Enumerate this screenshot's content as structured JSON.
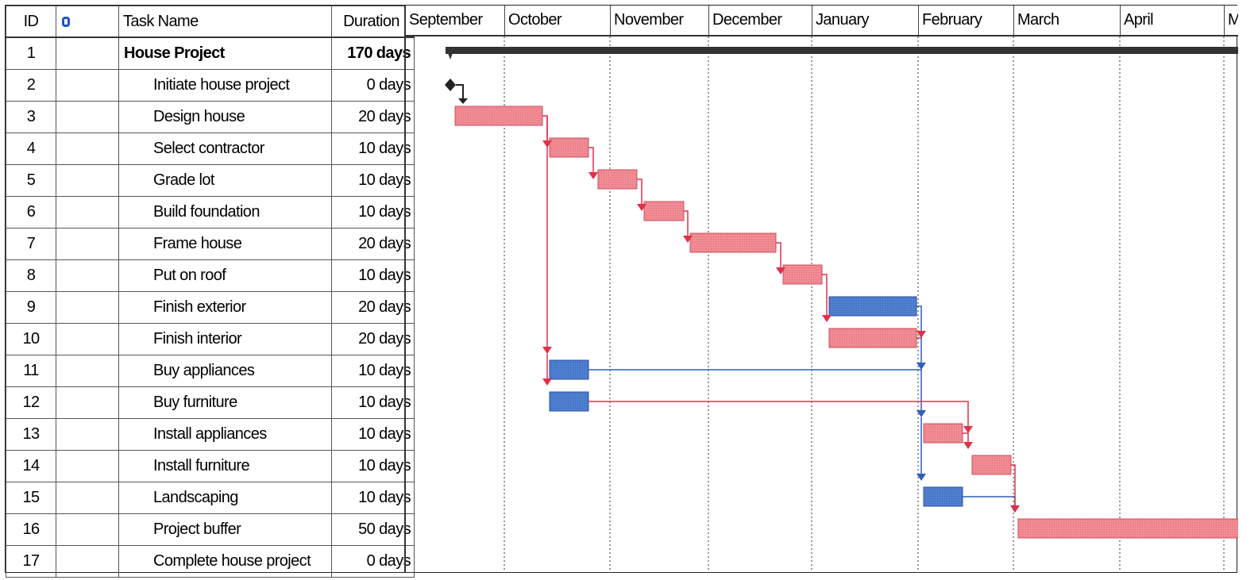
{
  "columns": {
    "id": "ID",
    "task_name": "Task Name",
    "duration": "Duration"
  },
  "indicator_icon": "info-icon",
  "months": [
    "September",
    "October",
    "November",
    "December",
    "January",
    "February",
    "March",
    "April",
    "Ma"
  ],
  "tasks": [
    {
      "id": "1",
      "name": "House Project",
      "duration": "170 days",
      "summary": true
    },
    {
      "id": "2",
      "name": "Initiate house project",
      "duration": "0 days"
    },
    {
      "id": "3",
      "name": "Design house",
      "duration": "20 days"
    },
    {
      "id": "4",
      "name": "Select contractor",
      "duration": "10 days"
    },
    {
      "id": "5",
      "name": "Grade lot",
      "duration": "10 days"
    },
    {
      "id": "6",
      "name": "Build foundation",
      "duration": "10 days"
    },
    {
      "id": "7",
      "name": "Frame house",
      "duration": "20 days"
    },
    {
      "id": "8",
      "name": "Put on roof",
      "duration": "10 days"
    },
    {
      "id": "9",
      "name": "Finish exterior",
      "duration": "20 days"
    },
    {
      "id": "10",
      "name": "Finish interior",
      "duration": "20 days"
    },
    {
      "id": "11",
      "name": "Buy appliances",
      "duration": "10 days"
    },
    {
      "id": "12",
      "name": "Buy furniture",
      "duration": "10 days"
    },
    {
      "id": "13",
      "name": "Install appliances",
      "duration": "10 days"
    },
    {
      "id": "14",
      "name": "Install furniture",
      "duration": "10 days"
    },
    {
      "id": "15",
      "name": "Landscaping",
      "duration": "10 days"
    },
    {
      "id": "16",
      "name": "Project buffer",
      "duration": "50 days"
    },
    {
      "id": "17",
      "name": "Complete house project",
      "duration": "0 days"
    }
  ],
  "colors": {
    "critical_bar": "#f08c94",
    "critical_link": "#e0304a",
    "noncritical_bar": "#4f7fd0",
    "noncritical_link": "#2f5fb8",
    "summary_bar": "#333333",
    "milestone": "#222222"
  }
}
